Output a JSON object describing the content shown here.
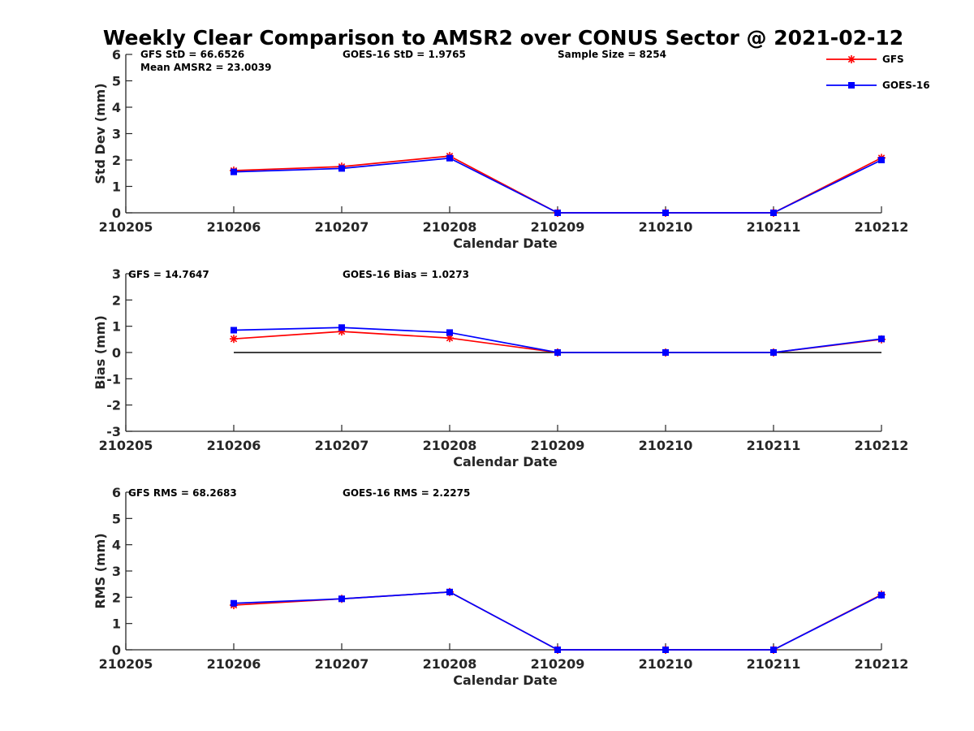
{
  "figure": {
    "title": "Weekly Clear Comparison to AMSR2 over CONUS Sector @ 2021-02-12"
  },
  "legend": {
    "placement": "top-right",
    "items": [
      {
        "label": "GFS",
        "color": "#ff0000",
        "marker": "asterisk"
      },
      {
        "label": "GOES-16",
        "color": "#0000ff",
        "marker": "square"
      }
    ]
  },
  "chart_data": [
    {
      "type": "line",
      "xlabel": "Calendar Date",
      "ylabel": "Std Dev (mm)",
      "ylim": [
        0,
        6
      ],
      "yticks": [
        "0",
        "1",
        "2",
        "3",
        "4",
        "5",
        "6"
      ],
      "categories": [
        "210205",
        "210206",
        "210207",
        "210208",
        "210209",
        "210210",
        "210211",
        "210212"
      ],
      "annotations": [
        "GFS StD = 66.6526",
        "Mean AMSR2 = 23.0039",
        "GOES-16 StD = 1.9765",
        "Sample Size = 8254"
      ],
      "series": [
        {
          "name": "GFS",
          "color": "#ff0000",
          "marker": "asterisk",
          "values": [
            null,
            1.6,
            1.75,
            2.15,
            0,
            0,
            0,
            2.08
          ]
        },
        {
          "name": "GOES-16",
          "color": "#0000ff",
          "marker": "square",
          "values": [
            null,
            1.55,
            1.68,
            2.07,
            0,
            0,
            0,
            2.0
          ]
        }
      ]
    },
    {
      "type": "line",
      "xlabel": "Calendar Date",
      "ylabel": "Bias (mm)",
      "ylim": [
        -3,
        3
      ],
      "yticks": [
        "-3",
        "-2",
        "-1",
        "0",
        "1",
        "2",
        "3"
      ],
      "categories": [
        "210205",
        "210206",
        "210207",
        "210208",
        "210209",
        "210210",
        "210211",
        "210212"
      ],
      "annotations": [
        "GFS = 14.7647",
        "GOES-16 Bias  = 1.0273"
      ],
      "zero_line": true,
      "series": [
        {
          "name": "GFS",
          "color": "#ff0000",
          "marker": "asterisk",
          "values": [
            null,
            0.52,
            0.8,
            0.55,
            0,
            0,
            0,
            0.5
          ]
        },
        {
          "name": "GOES-16",
          "color": "#0000ff",
          "marker": "square",
          "values": [
            null,
            0.85,
            0.95,
            0.76,
            0,
            0,
            0,
            0.52
          ]
        }
      ]
    },
    {
      "type": "line",
      "xlabel": "Calendar Date",
      "ylabel": "RMS (mm)",
      "ylim": [
        0,
        6
      ],
      "yticks": [
        "0",
        "1",
        "2",
        "3",
        "4",
        "5",
        "6"
      ],
      "categories": [
        "210205",
        "210206",
        "210207",
        "210208",
        "210209",
        "210210",
        "210211",
        "210212"
      ],
      "annotations": [
        "GFS RMS = 68.2683",
        "GOES-16 RMS = 2.2275"
      ],
      "series": [
        {
          "name": "GFS",
          "color": "#ff0000",
          "marker": "asterisk",
          "values": [
            null,
            1.7,
            1.94,
            2.2,
            0,
            0,
            0,
            2.1
          ]
        },
        {
          "name": "GOES-16",
          "color": "#0000ff",
          "marker": "square",
          "values": [
            null,
            1.77,
            1.94,
            2.2,
            0,
            0,
            0,
            2.08
          ]
        }
      ]
    }
  ]
}
